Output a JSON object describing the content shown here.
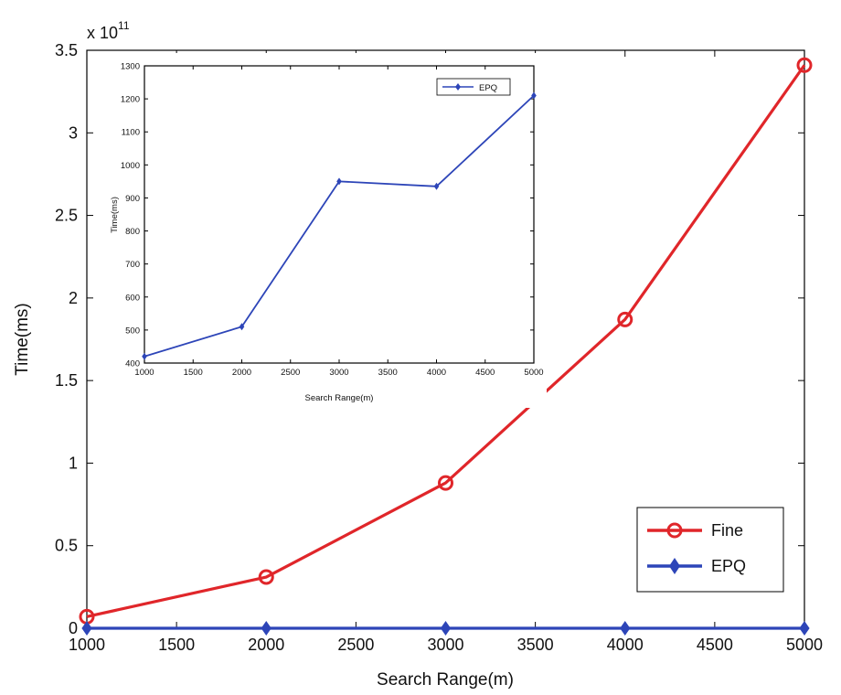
{
  "chart_data": [
    {
      "type": "line",
      "xlabel": "Search Range(m)",
      "ylabel": "Time(ms)",
      "y_exponent_label": "x 10",
      "y_exponent_power": "11",
      "x": [
        1000,
        2000,
        3000,
        4000,
        5000
      ],
      "xlim": [
        1000,
        5000
      ],
      "ylim": [
        0,
        3.5
      ],
      "xticks": [
        "1000",
        "1500",
        "2000",
        "2500",
        "3000",
        "3500",
        "4000",
        "4500",
        "5000"
      ],
      "yticks": [
        "0",
        "0.5",
        "1",
        "1.5",
        "2",
        "2.5",
        "3",
        "3.5"
      ],
      "series": [
        {
          "name": "Fine",
          "color": "#e0262a",
          "marker": "circle",
          "values": [
            0.07,
            0.31,
            0.88,
            1.87,
            3.41
          ]
        },
        {
          "name": "EPQ",
          "color": "#2d45b8",
          "marker": "diamond",
          "values": [
            0,
            0,
            0,
            0,
            0
          ]
        }
      ],
      "legend": "bottom-right",
      "grid": false
    },
    {
      "type": "line",
      "xlabel": "Search Range(m)",
      "ylabel": "Time(ms)",
      "x": [
        1000,
        2000,
        3000,
        4000,
        5000
      ],
      "xlim": [
        1000,
        5000
      ],
      "ylim": [
        400,
        1300
      ],
      "xticks": [
        "1000",
        "1500",
        "2000",
        "2500",
        "3000",
        "3500",
        "4000",
        "4500",
        "5000"
      ],
      "yticks": [
        "400",
        "500",
        "600",
        "700",
        "800",
        "900",
        "1000",
        "1100",
        "1200",
        "1300"
      ],
      "series": [
        {
          "name": "EPQ",
          "color": "#2d45b8",
          "marker": "diamond",
          "values": [
            420,
            510,
            950,
            935,
            1210
          ]
        }
      ],
      "legend": "top-right",
      "grid": false
    }
  ]
}
